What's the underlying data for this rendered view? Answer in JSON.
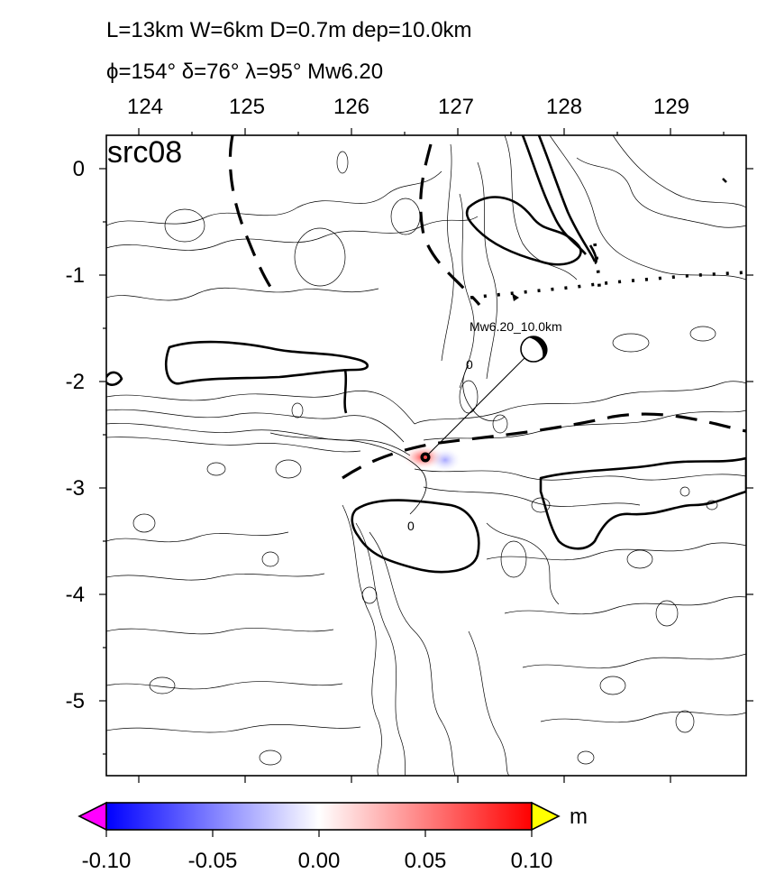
{
  "header": {
    "line1": "L=13km W=6km D=0.7m dep=10.0km",
    "line2": "ϕ=154° δ=76° λ=95° Mw6.20"
  },
  "map": {
    "panel_label": "src08",
    "x_ticks": [
      "124",
      "125",
      "126",
      "127",
      "128",
      "129"
    ],
    "y_ticks": [
      "0",
      "-1",
      "-2",
      "-3",
      "-4",
      "-5"
    ],
    "epicenter_label": "Mw6.20_10.0km",
    "contour_labels": [
      "0",
      "0"
    ]
  },
  "colorbar": {
    "unit": "m",
    "ticks": [
      "-0.10",
      "-0.05",
      "0.00",
      "0.05",
      "0.10"
    ],
    "colors": {
      "low": "#0000ff",
      "mid": "#ffffff",
      "high": "#ff0000",
      "under": "#ff00ff",
      "over": "#ffff00"
    }
  }
}
